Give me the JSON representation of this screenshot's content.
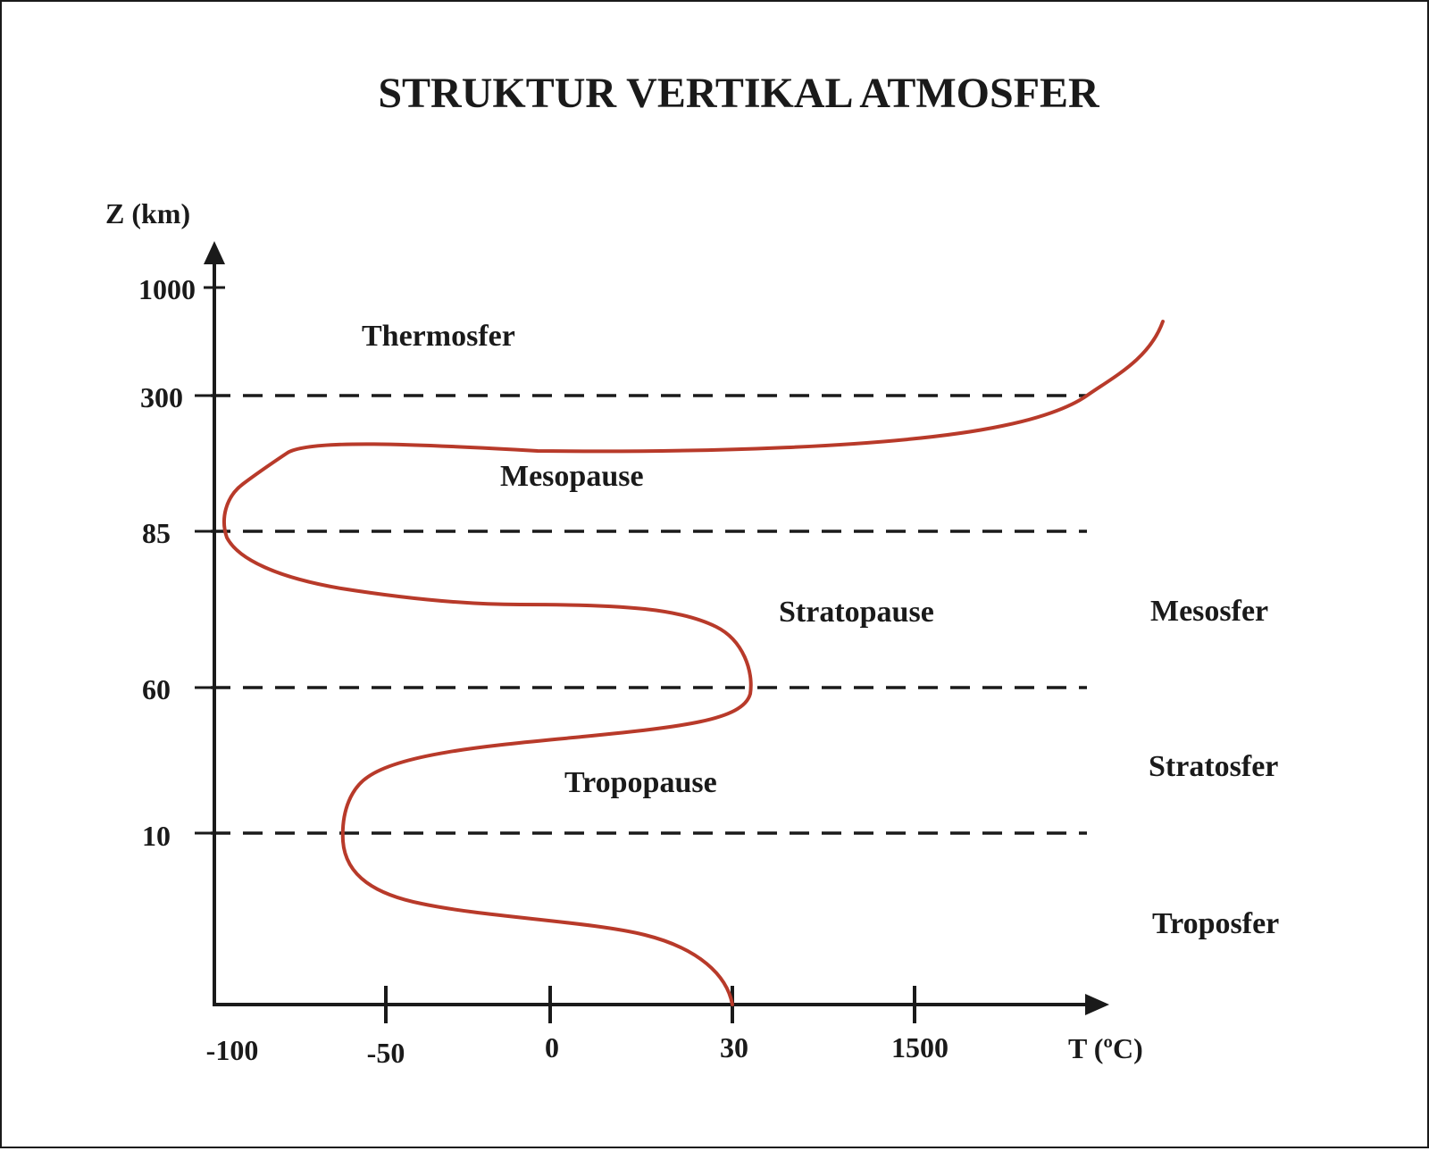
{
  "title": "STRUKTUR VERTIKAL ATMOSFER",
  "y_axis": {
    "label": "Z (km)",
    "ticks": [
      "1000",
      "300",
      "85",
      "60",
      "10"
    ]
  },
  "x_axis": {
    "label": "T (ºC)",
    "ticks": [
      "-100",
      "-50",
      "0",
      "30",
      "1500"
    ]
  },
  "boundary_lines": [
    "300",
    "85",
    "60",
    "10"
  ],
  "pause_labels": {
    "mesopause": "Mesopause",
    "stratopause": "Stratopause",
    "tropopause": "Tropopause"
  },
  "layer_labels": {
    "thermosfer": "Thermosfer",
    "mesosfer": "Mesosfer",
    "stratosfer": "Stratosfer",
    "troposfer": "Troposfer"
  },
  "colors": {
    "curve": "#b83a2a",
    "axis": "#1a1a1a",
    "text": "#1a1a1a"
  }
}
